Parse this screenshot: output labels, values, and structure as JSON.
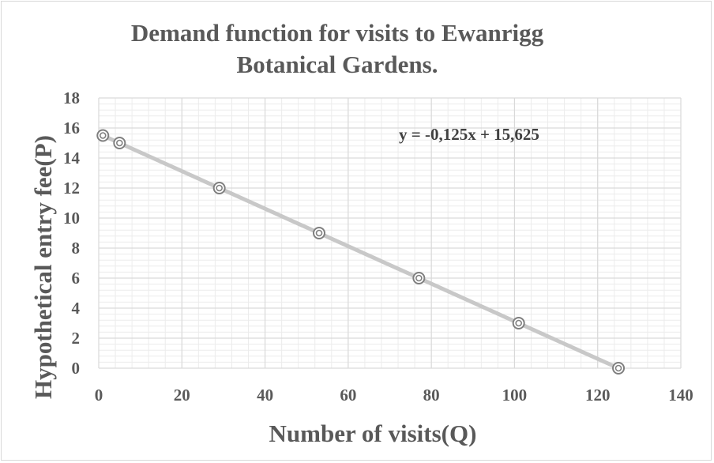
{
  "chart_data": {
    "type": "scatter",
    "title_lines": [
      "Demand function for visits to Ewanrigg",
      "Botanical Gardens."
    ],
    "xlabel": "Number of visits(Q)",
    "ylabel": "Hypothetical entry fee(P)",
    "xlim": [
      0,
      140
    ],
    "ylim": [
      0,
      18
    ],
    "x_ticks": [
      "0",
      "20",
      "40",
      "60",
      "80",
      "100",
      "120",
      "140"
    ],
    "y_ticks": [
      "0",
      "2",
      "4",
      "6",
      "8",
      "10",
      "12",
      "14",
      "16",
      "18"
    ],
    "grid": true,
    "series": [
      {
        "x": [
          1,
          5,
          29,
          53,
          77,
          101,
          125
        ],
        "y": [
          15.5,
          15,
          12,
          9,
          6,
          3,
          0
        ]
      }
    ],
    "trendline": {
      "type": "linear",
      "slope": -0.125,
      "intercept": 15.625,
      "equation": "y = -0,125x + 15,625"
    },
    "colors": {
      "marker": "#7f7f7f",
      "trendline": "#c8c8c8",
      "grid": "#d9d9d9",
      "text": "#595959"
    }
  }
}
